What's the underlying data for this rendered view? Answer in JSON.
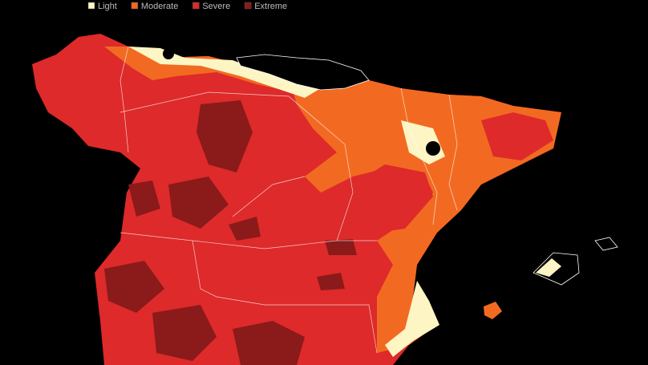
{
  "legend": [
    {
      "label": "Light",
      "color": "#fdf5c4"
    },
    {
      "label": "Moderate",
      "color": "#f26a21"
    },
    {
      "label": "Severe",
      "color": "#de2a2a"
    },
    {
      "label": "Extreme",
      "color": "#8b1a1a"
    }
  ]
}
